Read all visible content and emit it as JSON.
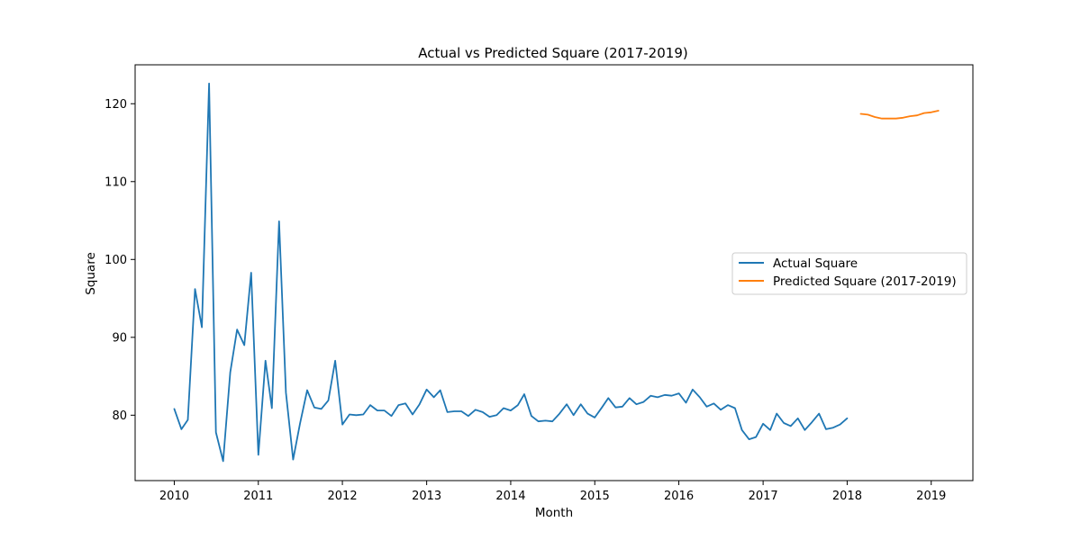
{
  "chart_data": {
    "type": "line",
    "title": "Actual vs Predicted Square (2017-2019)",
    "xlabel": "Month",
    "ylabel": "Square",
    "xlim": [
      "2009-07-15",
      "2019-07-01"
    ],
    "ylim": [
      71.6,
      125.0
    ],
    "x_ticks": [
      "2010",
      "2011",
      "2012",
      "2013",
      "2014",
      "2015",
      "2016",
      "2017",
      "2018",
      "2019"
    ],
    "y_ticks": [
      80,
      90,
      100,
      110,
      120
    ],
    "grid": false,
    "legend_position": "center-right",
    "series": [
      {
        "name": "Actual Square",
        "color": "#1f77b4",
        "x": [
          "2010-01",
          "2010-02",
          "2010-03",
          "2010-04",
          "2010-05",
          "2010-06",
          "2010-07",
          "2010-08",
          "2010-09",
          "2010-10",
          "2010-11",
          "2010-12",
          "2011-01",
          "2011-02",
          "2011-03",
          "2011-04",
          "2011-05",
          "2011-06",
          "2011-07",
          "2011-08",
          "2011-09",
          "2011-10",
          "2011-11",
          "2011-12",
          "2012-01",
          "2012-02",
          "2012-03",
          "2012-04",
          "2012-05",
          "2012-06",
          "2012-07",
          "2012-08",
          "2012-09",
          "2012-10",
          "2012-11",
          "2012-12",
          "2013-01",
          "2013-02",
          "2013-03",
          "2013-04",
          "2013-05",
          "2013-06",
          "2013-07",
          "2013-08",
          "2013-09",
          "2013-10",
          "2013-11",
          "2013-12",
          "2014-01",
          "2014-02",
          "2014-03",
          "2014-04",
          "2014-05",
          "2014-06",
          "2014-07",
          "2014-08",
          "2014-09",
          "2014-10",
          "2014-11",
          "2014-12",
          "2015-01",
          "2015-02",
          "2015-03",
          "2015-04",
          "2015-05",
          "2015-06",
          "2015-07",
          "2015-08",
          "2015-09",
          "2015-10",
          "2015-11",
          "2015-12",
          "2016-01",
          "2016-02",
          "2016-03",
          "2016-04",
          "2016-05",
          "2016-06",
          "2016-07",
          "2016-08",
          "2016-09",
          "2016-10",
          "2016-11",
          "2016-12",
          "2017-01",
          "2017-02",
          "2017-03",
          "2017-04",
          "2017-05",
          "2017-06",
          "2017-07",
          "2017-08",
          "2017-09",
          "2017-10",
          "2017-11",
          "2017-12",
          "2018-01"
        ],
        "values": [
          80.8,
          78.2,
          79.4,
          96.2,
          91.3,
          122.6,
          77.8,
          74.1,
          85.5,
          91.0,
          89.0,
          98.3,
          74.9,
          87.0,
          80.9,
          104.9,
          82.9,
          74.3,
          78.9,
          83.2,
          81.0,
          80.8,
          81.9,
          87.0,
          78.8,
          80.1,
          80.0,
          80.1,
          81.3,
          80.6,
          80.6,
          79.9,
          81.3,
          81.5,
          80.1,
          81.4,
          83.3,
          82.3,
          83.2,
          80.4,
          80.5,
          80.5,
          79.9,
          80.7,
          80.4,
          79.8,
          80.0,
          80.9,
          80.6,
          81.3,
          82.7,
          79.9,
          79.2,
          79.3,
          79.2,
          80.2,
          81.4,
          80.0,
          81.4,
          80.2,
          79.7,
          81.0,
          82.2,
          81.0,
          81.1,
          82.2,
          81.4,
          81.7,
          82.5,
          82.3,
          82.6,
          82.5,
          82.8,
          81.6,
          83.3,
          82.3,
          81.1,
          81.5,
          80.7,
          81.3,
          80.9,
          78.1,
          76.9,
          77.2,
          78.9,
          78.1,
          80.2,
          79.0,
          78.6,
          79.6,
          78.1,
          79.1,
          80.2,
          78.2,
          78.4,
          78.8,
          79.6
        ]
      },
      {
        "name": "Predicted Square (2017-2019)",
        "color": "#ff7f0e",
        "x": [
          "2018-03",
          "2018-04",
          "2018-05",
          "2018-06",
          "2018-07",
          "2018-08",
          "2018-09",
          "2018-10",
          "2018-11",
          "2018-12",
          "2019-01",
          "2019-02"
        ],
        "values": [
          118.7,
          118.6,
          118.3,
          118.1,
          118.1,
          118.1,
          118.2,
          118.4,
          118.5,
          118.8,
          118.9,
          119.1
        ]
      }
    ]
  }
}
